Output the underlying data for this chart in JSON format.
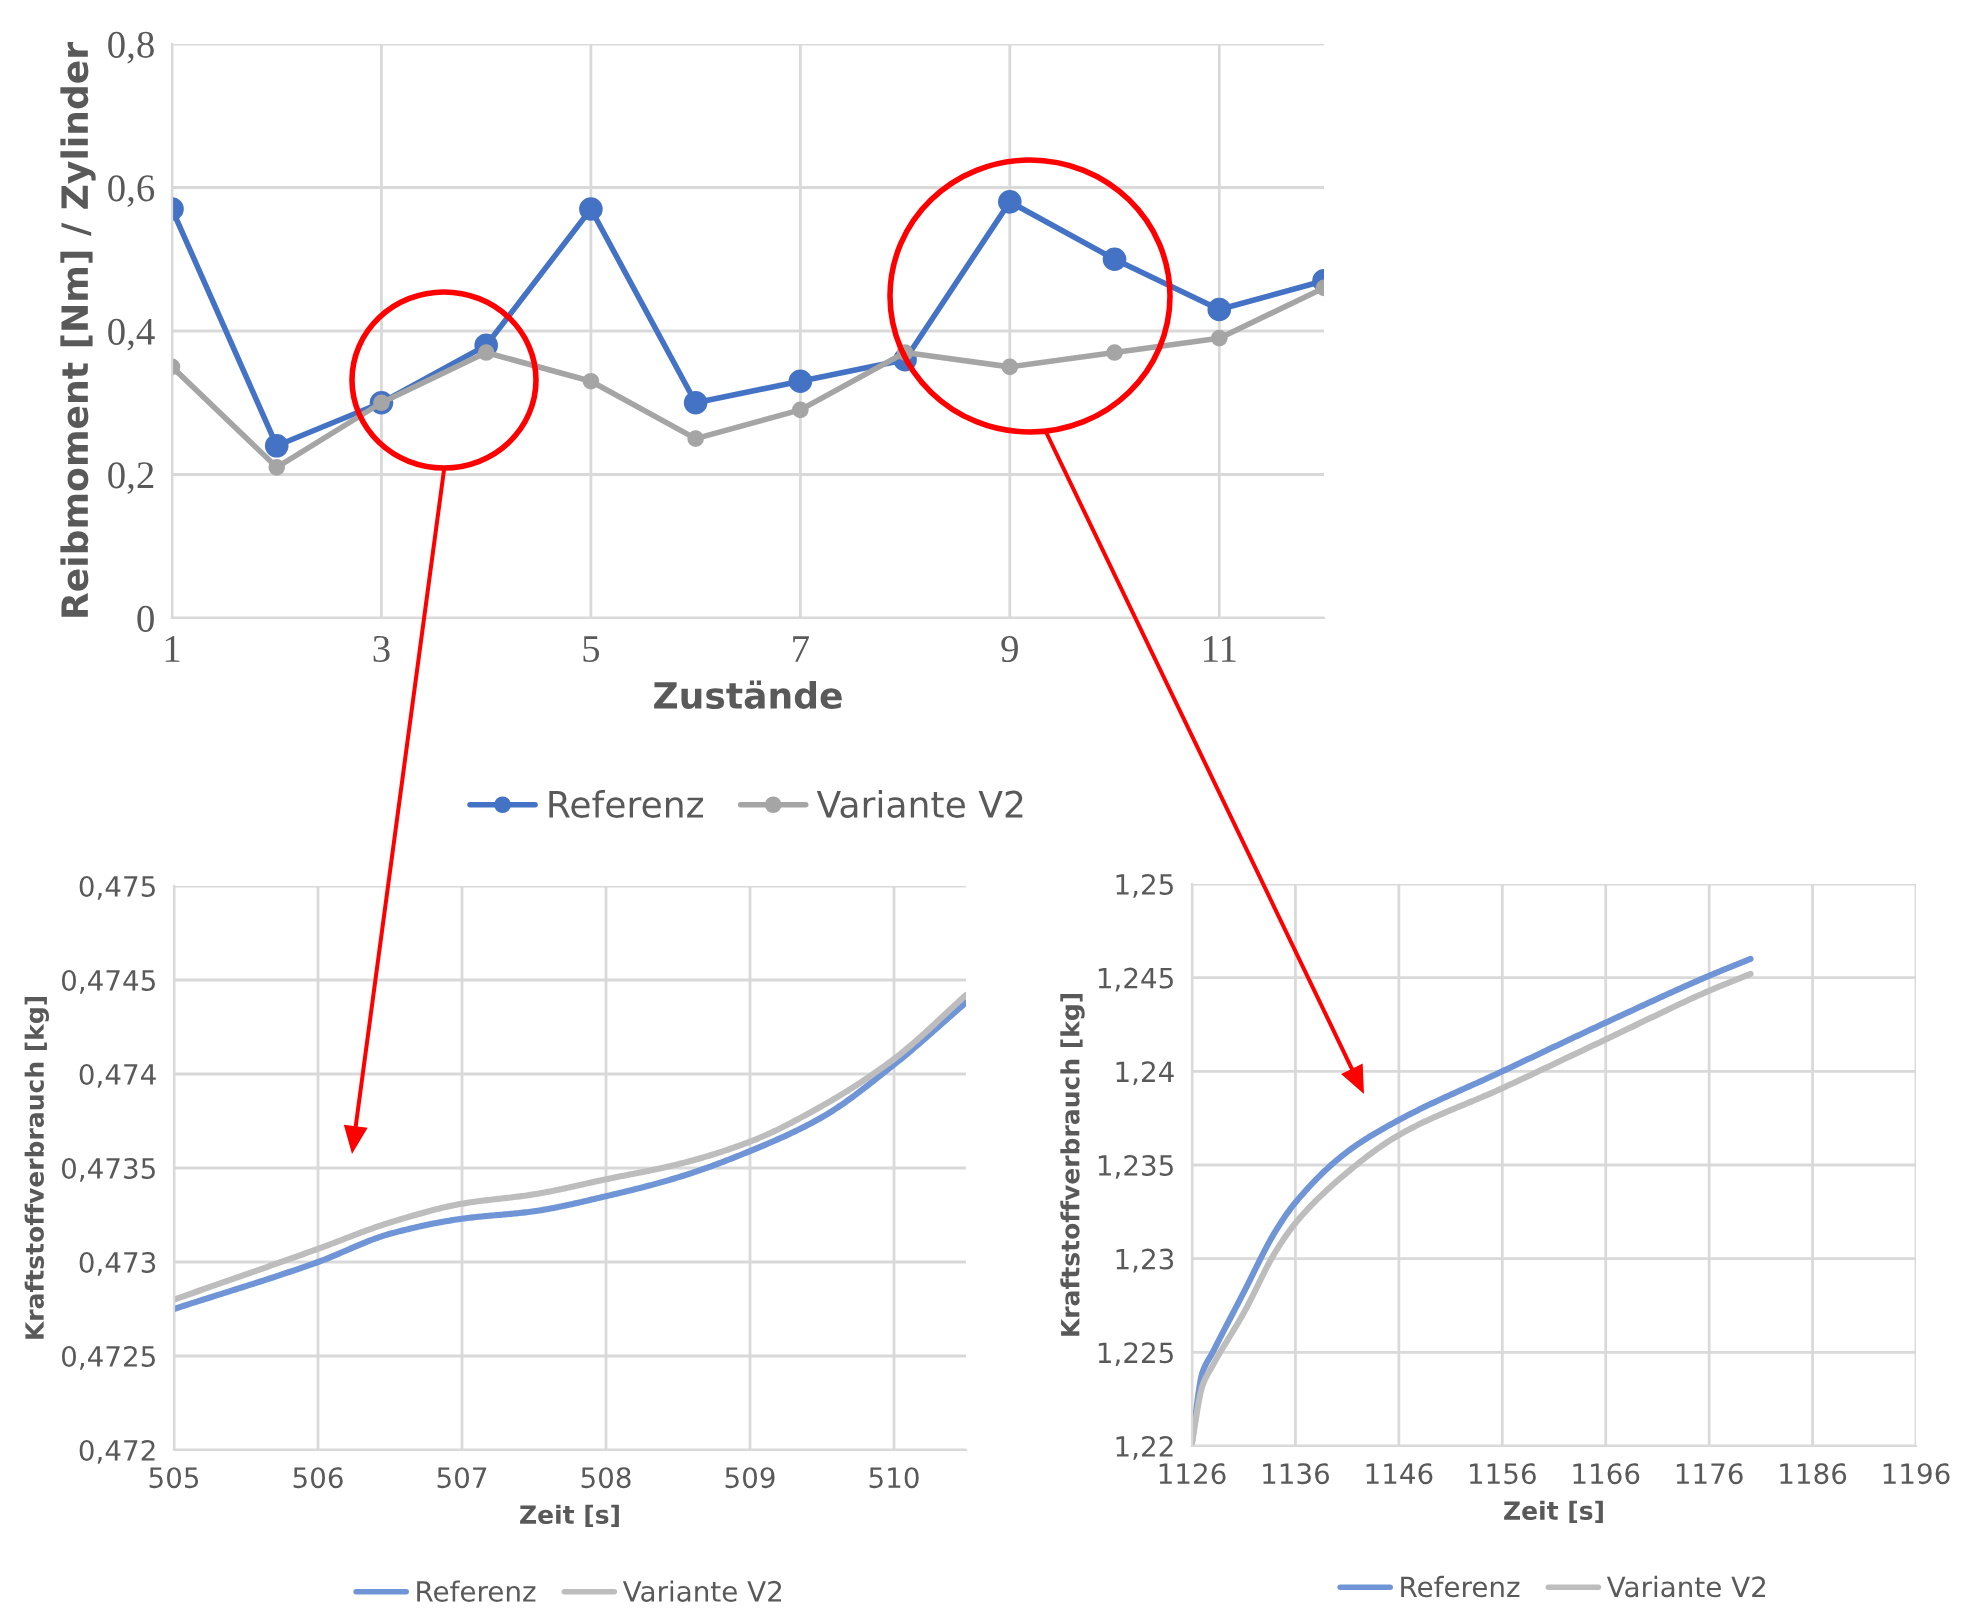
{
  "chart_data": [
    {
      "type": "line",
      "xlabel": "Zustände",
      "ylabel": "Reibmoment [Nm] / Zylinder",
      "x": [
        1,
        2,
        3,
        4,
        5,
        6,
        7,
        8,
        9,
        10,
        11,
        12
      ],
      "xlim": [
        1,
        12
      ],
      "xticks": [
        1,
        3,
        5,
        7,
        9,
        11
      ],
      "ylim": [
        0,
        0.8
      ],
      "yticks": [
        {
          "value": 0,
          "label": "0"
        },
        {
          "value": 0.2,
          "label": "0,2"
        },
        {
          "value": 0.4,
          "label": "0,4"
        },
        {
          "value": 0.6,
          "label": "0,6"
        },
        {
          "value": 0.8,
          "label": "0,8"
        }
      ],
      "grid": true,
      "legend": "bottom",
      "marker": "circle",
      "line_style": "solid",
      "series": [
        {
          "name": "Referenz",
          "color": "#4472c4",
          "values": [
            0.57,
            0.24,
            0.3,
            0.38,
            0.57,
            0.3,
            0.33,
            0.36,
            0.58,
            0.5,
            0.43,
            0.47
          ]
        },
        {
          "name": "Variante V2",
          "color": "#a5a5a5",
          "values": [
            0.35,
            0.21,
            0.3,
            0.37,
            0.33,
            0.25,
            0.29,
            0.37,
            0.35,
            0.37,
            0.39,
            0.46
          ]
        }
      ]
    },
    {
      "type": "line",
      "xlabel": "Zeit [s]",
      "ylabel": "Kraftstoffverbrauch [kg]",
      "x": [
        505,
        506,
        506.5,
        507,
        507.5,
        508,
        508.5,
        509,
        509.5,
        510,
        510.5
      ],
      "xlim": [
        505,
        510.5
      ],
      "xticks": [
        505,
        506,
        507,
        508,
        509,
        510
      ],
      "ylim": [
        0.472,
        0.475
      ],
      "yticks": [
        {
          "value": 0.472,
          "label": "0,472"
        },
        {
          "value": 0.4725,
          "label": "0,4725"
        },
        {
          "value": 0.473,
          "label": "0,473"
        },
        {
          "value": 0.4735,
          "label": "0,4735"
        },
        {
          "value": 0.474,
          "label": "0,474"
        },
        {
          "value": 0.4745,
          "label": "0,4745"
        },
        {
          "value": 0.475,
          "label": "0,475"
        }
      ],
      "grid": true,
      "legend": "bottom",
      "line_style": "solid",
      "series": [
        {
          "name": "Referenz",
          "color": "#6f95d6",
          "values": [
            0.47275,
            0.473,
            0.47315,
            0.47323,
            0.47327,
            0.47335,
            0.47345,
            0.47359,
            0.47377,
            0.47405,
            0.47438
          ]
        },
        {
          "name": "Variante V2",
          "color": "#bdbdbd",
          "values": [
            0.4728,
            0.47307,
            0.47321,
            0.47331,
            0.47336,
            0.47344,
            0.47352,
            0.47364,
            0.47383,
            0.47408,
            0.47442
          ]
        }
      ]
    },
    {
      "type": "line",
      "xlabel": "Zeit [s]",
      "ylabel": "Kraftstoffverbrauch [kg]",
      "x": [
        1126,
        1127,
        1128,
        1131,
        1134,
        1136,
        1141,
        1146,
        1156,
        1166,
        1176,
        1180
      ],
      "xlim": [
        1126,
        1196
      ],
      "xticks": [
        1126,
        1136,
        1146,
        1156,
        1166,
        1176,
        1186,
        1196
      ],
      "ylim": [
        1.22,
        1.25
      ],
      "yticks": [
        {
          "value": 1.22,
          "label": "1,22"
        },
        {
          "value": 1.225,
          "label": "1,225"
        },
        {
          "value": 1.23,
          "label": "1,23"
        },
        {
          "value": 1.235,
          "label": "1,235"
        },
        {
          "value": 1.24,
          "label": "1,24"
        },
        {
          "value": 1.245,
          "label": "1,245"
        },
        {
          "value": 1.25,
          "label": "1,25"
        }
      ],
      "grid": true,
      "legend": "bottom",
      "line_style": "solid",
      "series": [
        {
          "name": "Referenz",
          "color": "#6f95d6",
          "values": [
            1.2202,
            1.2239,
            1.225,
            1.2282,
            1.2314,
            1.233,
            1.2357,
            1.2374,
            1.24,
            1.2426,
            1.2451,
            1.246
          ]
        },
        {
          "name": "Variante V2",
          "color": "#bdbdbd",
          "values": [
            1.2202,
            1.2232,
            1.2243,
            1.2271,
            1.2303,
            1.2319,
            1.2346,
            1.2366,
            1.2391,
            1.2417,
            1.2443,
            1.2452
          ]
        }
      ]
    }
  ]
}
